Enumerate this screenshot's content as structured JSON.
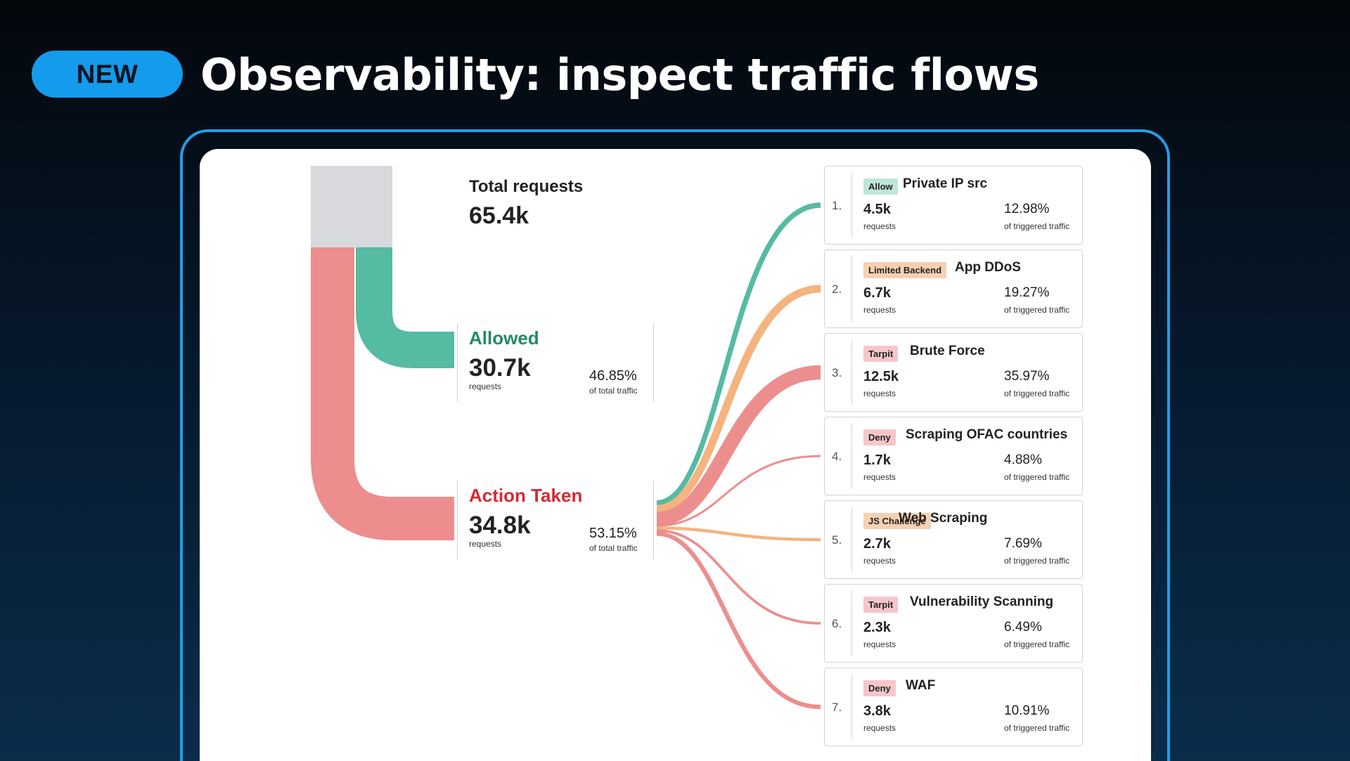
{
  "badge": {
    "label": "NEW"
  },
  "slide": {
    "title": "Observability: inspect traffic flows"
  },
  "colors": {
    "allowed": "#55bba2",
    "action": "#ec8e8e",
    "limited": "#f5b37e",
    "total_block": "#d8d9dd",
    "allowed_text": "#228a6a",
    "action_text": "#d42a33"
  },
  "total": {
    "label": "Total requests",
    "value": "65.4k"
  },
  "groups": {
    "allowed": {
      "label": "Allowed",
      "value": "30.7k",
      "unit": "requests",
      "percent": "46.85%",
      "percent_label": "of total traffic"
    },
    "action": {
      "label": "Action Taken",
      "value": "34.8k",
      "unit": "requests",
      "percent": "53.15%",
      "percent_label": "of total traffic"
    }
  },
  "rules": [
    {
      "index": "1.",
      "tag": "Allow",
      "tag_color": "#bfe6d8",
      "flow_color": "#55bba2",
      "name": "Private IP src",
      "count": "4.5k",
      "count_unit": "requests",
      "percent": "12.98%",
      "percent_label": "of triggered traffic"
    },
    {
      "index": "2.",
      "tag": "Limited Backend",
      "tag_color": "#f7d0b2",
      "flow_color": "#f5b37e",
      "name": "App DDoS",
      "count": "6.7k",
      "count_unit": "requests",
      "percent": "19.27%",
      "percent_label": "of triggered traffic"
    },
    {
      "index": "3.",
      "tag": "Tarpit",
      "tag_color": "#f6c6c9",
      "flow_color": "#ec8e8e",
      "name": "Brute Force",
      "count": "12.5k",
      "count_unit": "requests",
      "percent": "35.97%",
      "percent_label": "of triggered traffic"
    },
    {
      "index": "4.",
      "tag": "Deny",
      "tag_color": "#f6c6c9",
      "flow_color": "#ec8e8e",
      "name": "Scraping OFAC countries",
      "count": "1.7k",
      "count_unit": "requests",
      "percent": "4.88%",
      "percent_label": "of triggered traffic"
    },
    {
      "index": "5.",
      "tag": "JS Challenge",
      "tag_color": "#f7d0b2",
      "flow_color": "#f5b37e",
      "name": "Web Scraping",
      "count": "2.7k",
      "count_unit": "requests",
      "percent": "7.69%",
      "percent_label": "of triggered traffic"
    },
    {
      "index": "6.",
      "tag": "Tarpit",
      "tag_color": "#f6c6c9",
      "flow_color": "#ec8e8e",
      "name": "Vulnerability Scanning",
      "count": "2.3k",
      "count_unit": "requests",
      "percent": "6.49%",
      "percent_label": "of triggered traffic"
    },
    {
      "index": "7.",
      "tag": "Deny",
      "tag_color": "#f6c6c9",
      "flow_color": "#ec8e8e",
      "name": "WAF",
      "count": "3.8k",
      "count_unit": "requests",
      "percent": "10.91%",
      "percent_label": "of triggered traffic"
    }
  ]
}
